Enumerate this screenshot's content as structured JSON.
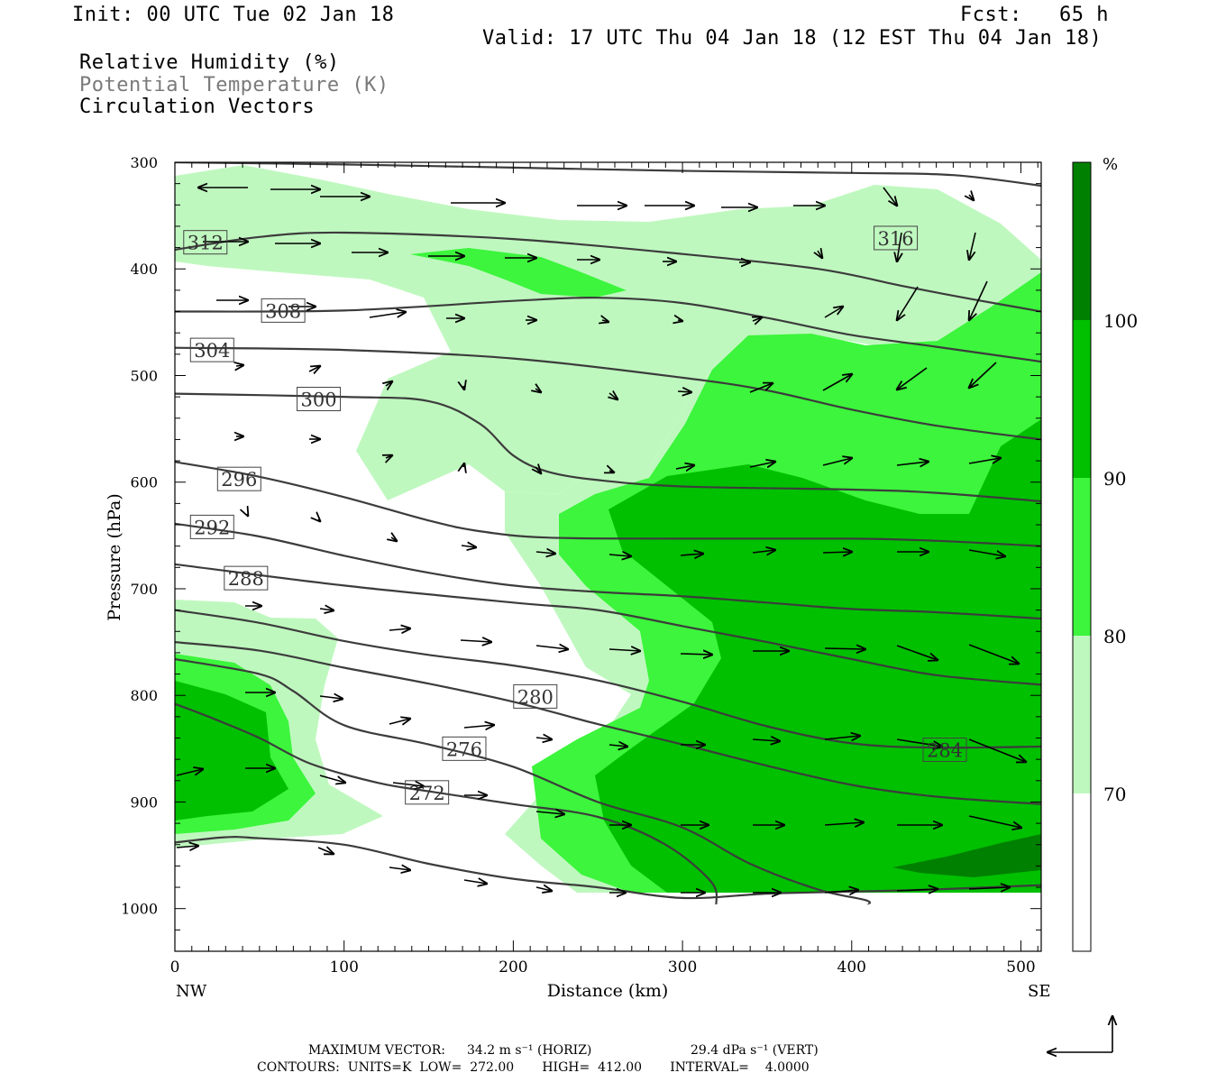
{
  "header": {
    "init": "Init: 00 UTC Tue 02 Jan 18",
    "fcst": "Fcst:   65 h",
    "valid": "Valid: 17 UTC Thu 04 Jan 18 (12 EST Thu 04 Jan 18)",
    "field1": "Relative Humidity (%)",
    "field2": "Potential Temperature (K)",
    "field3": "Circulation Vectors"
  },
  "footer": {
    "max_vector_label": "MAXIMUM VECTOR:",
    "max_horiz": "34.2 m s⁻¹ (HORIZ)",
    "max_vert": "29.4 dPa s⁻¹ (VERT)",
    "contours": "CONTOURS:  UNITS=K  LOW=  272.00       HIGH=  412.00       INTERVAL=    4.0000"
  },
  "colors": {
    "rh70": "#ffffff",
    "rh80": "#bff8bf",
    "rh90": "#3cf53c",
    "rh100": "#00c000",
    "rh110": "#008000",
    "contour": "#3c3c3c"
  },
  "chart_data": {
    "type": "cross-section",
    "xlabel": "Distance (km)",
    "ylabel": "Pressure (hPa)",
    "x_ticks": [
      0,
      100,
      200,
      300,
      400,
      500
    ],
    "y_ticks": [
      300,
      400,
      500,
      600,
      700,
      800,
      900,
      1000
    ],
    "xlim": [
      0,
      512
    ],
    "ylim": [
      300,
      1040
    ],
    "left_end_label": "NW",
    "right_end_label": "SE",
    "colorbar": {
      "unit": "%",
      "levels": [
        70,
        80,
        90,
        100
      ]
    },
    "theta_contours": [
      {
        "label": 316,
        "label_at": [
          426,
          371
        ],
        "points": [
          [
            0,
            300
          ],
          [
            100,
            302
          ],
          [
            200,
            305
          ],
          [
            300,
            308
          ],
          [
            400,
            310
          ],
          [
            460,
            312
          ],
          [
            512,
            322
          ]
        ]
      },
      {
        "label": 312,
        "label_at": [
          18,
          375
        ],
        "points": [
          [
            0,
            382
          ],
          [
            50,
            370
          ],
          [
            100,
            366
          ],
          [
            200,
            372
          ],
          [
            300,
            386
          ],
          [
            380,
            400
          ],
          [
            430,
            416
          ],
          [
            470,
            428
          ],
          [
            512,
            440
          ]
        ]
      },
      {
        "label": 308,
        "label_at": [
          64,
          439
        ],
        "points": [
          [
            0,
            440
          ],
          [
            100,
            439
          ],
          [
            200,
            430
          ],
          [
            250,
            427
          ],
          [
            300,
            432
          ],
          [
            350,
            446
          ],
          [
            400,
            462
          ],
          [
            450,
            473
          ],
          [
            512,
            487
          ]
        ]
      },
      {
        "label": 304,
        "label_at": [
          22,
          476
        ],
        "points": [
          [
            0,
            474
          ],
          [
            100,
            476
          ],
          [
            200,
            484
          ],
          [
            300,
            502
          ],
          [
            350,
            514
          ],
          [
            400,
            532
          ],
          [
            450,
            547
          ],
          [
            512,
            560
          ]
        ]
      },
      {
        "label": 300,
        "label_at": [
          85,
          522
        ],
        "points": [
          [
            0,
            517
          ],
          [
            100,
            520
          ],
          [
            150,
            524
          ],
          [
            180,
            545
          ],
          [
            200,
            575
          ],
          [
            220,
            590
          ],
          [
            250,
            598
          ],
          [
            300,
            604
          ],
          [
            400,
            607
          ],
          [
            450,
            610
          ],
          [
            512,
            618
          ]
        ]
      },
      {
        "label": 296,
        "label_at": [
          38,
          597
        ],
        "points": [
          [
            0,
            581
          ],
          [
            50,
            595
          ],
          [
            100,
            614
          ],
          [
            150,
            636
          ],
          [
            180,
            646
          ],
          [
            220,
            652
          ],
          [
            300,
            653
          ],
          [
            400,
            653
          ],
          [
            450,
            655
          ],
          [
            512,
            660
          ]
        ]
      },
      {
        "label": 292,
        "label_at": [
          22,
          642
        ],
        "points": [
          [
            0,
            639
          ],
          [
            50,
            651
          ],
          [
            100,
            669
          ],
          [
            150,
            685
          ],
          [
            200,
            697
          ],
          [
            250,
            703
          ],
          [
            300,
            707
          ],
          [
            350,
            713
          ],
          [
            400,
            719
          ],
          [
            450,
            722
          ],
          [
            512,
            728
          ]
        ]
      },
      {
        "label": 288,
        "label_at": [
          42,
          690
        ],
        "points": [
          [
            0,
            677
          ],
          [
            100,
            697
          ],
          [
            200,
            713
          ],
          [
            250,
            720
          ],
          [
            300,
            735
          ],
          [
            350,
            750
          ],
          [
            400,
            766
          ],
          [
            450,
            781
          ],
          [
            512,
            790
          ]
        ]
      },
      {
        "label": 284,
        "label_at": [
          455,
          851
        ],
        "points": [
          [
            0,
            720
          ],
          [
            50,
            732
          ],
          [
            100,
            749
          ],
          [
            150,
            762
          ],
          [
            200,
            772
          ],
          [
            250,
            786
          ],
          [
            300,
            806
          ],
          [
            350,
            829
          ],
          [
            400,
            845
          ],
          [
            450,
            849
          ],
          [
            512,
            848
          ]
        ]
      },
      {
        "label": 280,
        "label_at": [
          213,
          801
        ],
        "points": [
          [
            0,
            750
          ],
          [
            50,
            758
          ],
          [
            100,
            774
          ],
          [
            150,
            789
          ],
          [
            200,
            806
          ],
          [
            250,
            827
          ],
          [
            300,
            846
          ],
          [
            350,
            866
          ],
          [
            400,
            884
          ],
          [
            450,
            895
          ],
          [
            512,
            902
          ]
        ]
      },
      {
        "label": 276,
        "label_at": [
          171,
          850
        ],
        "points": [
          [
            0,
            766
          ],
          [
            50,
            780
          ],
          [
            70,
            796
          ],
          [
            100,
            828
          ],
          [
            150,
            846
          ],
          [
            200,
            867
          ],
          [
            250,
            900
          ],
          [
            300,
            924
          ],
          [
            340,
            958
          ],
          [
            380,
            982
          ],
          [
            408,
            992
          ],
          [
            410,
            996
          ]
        ]
      },
      {
        "label": 272,
        "label_at": [
          149,
          891
        ],
        "points": [
          [
            0,
            808
          ],
          [
            20,
            820
          ],
          [
            50,
            840
          ],
          [
            80,
            864
          ],
          [
            120,
            882
          ],
          [
            150,
            890
          ],
          [
            200,
            902
          ],
          [
            250,
            914
          ],
          [
            290,
            940
          ],
          [
            317,
            975
          ],
          [
            320,
            996
          ]
        ]
      },
      {
        "label": 272,
        "label_at": null,
        "points": [
          [
            0,
            938
          ],
          [
            30,
            933
          ],
          [
            50,
            934
          ],
          [
            100,
            940
          ],
          [
            150,
            958
          ],
          [
            200,
            972
          ],
          [
            250,
            980
          ],
          [
            300,
            990
          ],
          [
            350,
            986
          ],
          [
            400,
            984
          ],
          [
            450,
            982
          ],
          [
            512,
            978
          ]
        ]
      }
    ]
  }
}
